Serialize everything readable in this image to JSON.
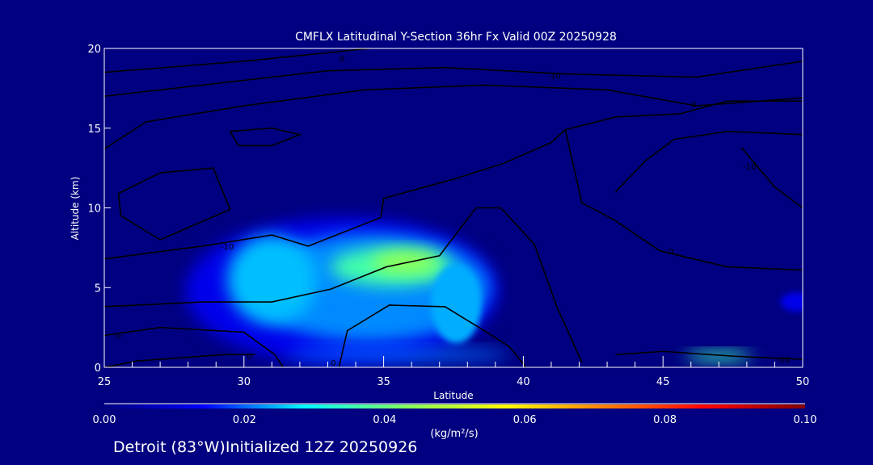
{
  "chart_data": {
    "type": "heatmap",
    "title": "CMFLX Latitudinal Y-Section 36hr  Fx Valid 00Z 20250928",
    "xlabel": "Latitude",
    "ylabel": "Altitude (km)",
    "xlim": [
      25,
      50
    ],
    "ylim": [
      0,
      20
    ],
    "xticks": [
      25,
      30,
      35,
      40,
      45,
      50
    ],
    "yticks": [
      0,
      5,
      10,
      15,
      20
    ],
    "background_color": "#000080",
    "colorbar": {
      "label": "(kg/m²/s)",
      "range": [
        0.0,
        0.1
      ],
      "ticks": [
        "0.00",
        "0.02",
        "0.04",
        "0.06",
        "0.08",
        "0.10"
      ],
      "colors": [
        "#000080",
        "#0000ff",
        "#00ffff",
        "#80ff60",
        "#ffff00",
        "#ff8000",
        "#ff0000",
        "#800000"
      ]
    },
    "field_blobs": [
      {
        "lat": 33.5,
        "alt": 4.8,
        "rlat": 5.6,
        "ralt": 4.6,
        "value": 0.012
      },
      {
        "lat": 34.5,
        "alt": 5.0,
        "rlat": 4.3,
        "ralt": 3.4,
        "value": 0.022
      },
      {
        "lat": 31.0,
        "alt": 5.5,
        "rlat": 1.6,
        "ralt": 2.8,
        "value": 0.025
      },
      {
        "lat": 35.3,
        "alt": 6.3,
        "rlat": 2.2,
        "ralt": 1.2,
        "value": 0.036
      },
      {
        "lat": 35.8,
        "alt": 6.6,
        "rlat": 1.2,
        "ralt": 0.7,
        "value": 0.045
      },
      {
        "lat": 37.6,
        "alt": 4.0,
        "rlat": 0.9,
        "ralt": 2.5,
        "value": 0.024
      },
      {
        "lat": 35.5,
        "alt": 0.8,
        "rlat": 4.0,
        "ralt": 0.4,
        "value": 0.02
      },
      {
        "lat": 47.0,
        "alt": 0.7,
        "rlat": 1.2,
        "ralt": 0.3,
        "value": 0.035
      },
      {
        "lat": 49.8,
        "alt": 4.1,
        "rlat": 0.6,
        "ralt": 0.6,
        "value": 0.012
      }
    ],
    "contours": [
      {
        "label": "0",
        "label_at": [
          33.5,
          19.4
        ],
        "points": [
          [
            25,
            18.5
          ],
          [
            30,
            19.2
          ],
          [
            34.5,
            20
          ]
        ]
      },
      {
        "label": "-10",
        "label_at": [
          41.1,
          18.3
        ],
        "points": [
          [
            25,
            17
          ],
          [
            28.5,
            17.7
          ],
          [
            33,
            18.6
          ],
          [
            37.2,
            18.8
          ],
          [
            41.5,
            18.4
          ],
          [
            46.2,
            18.2
          ],
          [
            50,
            19.2
          ]
        ]
      },
      {
        "label": "0",
        "label_at": [
          46.1,
          16.5
        ],
        "points": [
          [
            25,
            13.7
          ],
          [
            26.5,
            15.4
          ],
          [
            30,
            16.4
          ],
          [
            34.3,
            17.4
          ],
          [
            38.6,
            17.7
          ],
          [
            43,
            17.4
          ],
          [
            46.2,
            16.4
          ],
          [
            50,
            16.9
          ]
        ]
      },
      {
        "label": "",
        "label_at": null,
        "points": [
          [
            25.5,
            10.9
          ],
          [
            27,
            12.2
          ],
          [
            28.9,
            12.5
          ],
          [
            29.5,
            9.9
          ],
          [
            27,
            8.0
          ],
          [
            25.6,
            9.5
          ],
          [
            25.5,
            10.9
          ]
        ]
      },
      {
        "label": "",
        "label_at": null,
        "points": [
          [
            29.5,
            14.8
          ],
          [
            31,
            15
          ],
          [
            32,
            14.6
          ],
          [
            31,
            13.9
          ],
          [
            29.8,
            13.9
          ],
          [
            29.5,
            14.8
          ]
        ]
      },
      {
        "label": "-10",
        "label_at": [
          29.4,
          7.6
        ],
        "points": [
          [
            25,
            6.8
          ],
          [
            28.5,
            7.6
          ],
          [
            31,
            8.3
          ],
          [
            32.3,
            7.6
          ],
          [
            34.9,
            9.4
          ],
          [
            35,
            10.6
          ],
          [
            37.5,
            11.8
          ],
          [
            39.3,
            12.8
          ],
          [
            41,
            14.1
          ],
          [
            41.5,
            14.9
          ],
          [
            43.3,
            15.7
          ],
          [
            45.6,
            15.9
          ],
          [
            47.3,
            16.7
          ],
          [
            50,
            16.7
          ]
        ]
      },
      {
        "label": "",
        "label_at": null,
        "points": [
          [
            25,
            3.8
          ],
          [
            28.5,
            4.1
          ],
          [
            31,
            4.1
          ],
          [
            33.1,
            4.9
          ],
          [
            35.1,
            6.3
          ],
          [
            37,
            7.0
          ],
          [
            38.3,
            10
          ],
          [
            39.2,
            10
          ],
          [
            40.4,
            7.7
          ],
          [
            41.2,
            3.8
          ],
          [
            42.1,
            0.3
          ]
        ]
      },
      {
        "label": "0",
        "label_at": [
          25.5,
          2.0
        ],
        "points": [
          [
            25,
            2.0
          ],
          [
            27,
            2.5
          ],
          [
            30,
            2.2
          ],
          [
            31.1,
            0.8
          ],
          [
            31.4,
            0
          ]
        ]
      },
      {
        "label": "0",
        "label_at": [
          30.2,
          0.7
        ],
        "points": [
          [
            25,
            0
          ],
          [
            26.2,
            0.4
          ],
          [
            29.3,
            0.8
          ],
          [
            30.4,
            0.8
          ]
        ]
      },
      {
        "label": "0",
        "label_at": [
          33.2,
          0.3
        ],
        "points": [
          [
            33.4,
            0
          ],
          [
            33.7,
            2.3
          ],
          [
            35.2,
            3.9
          ],
          [
            37.2,
            3.8
          ],
          [
            38.6,
            2.3
          ],
          [
            39.5,
            1.3
          ],
          [
            40.1,
            0
          ]
        ]
      },
      {
        "label": "0",
        "label_at": [
          45.3,
          7.3
        ],
        "points": [
          [
            41.5,
            14.9
          ],
          [
            42.1,
            10.3
          ],
          [
            43.2,
            9.3
          ],
          [
            44.9,
            7.3
          ],
          [
            47.3,
            6.3
          ],
          [
            50,
            6.1
          ]
        ]
      },
      {
        "label": "",
        "label_at": null,
        "points": [
          [
            43.3,
            11
          ],
          [
            44.4,
            13
          ],
          [
            45.4,
            14.3
          ],
          [
            47.3,
            14.8
          ],
          [
            50,
            14.6
          ]
        ]
      },
      {
        "label": "-10",
        "label_at": [
          48.1,
          12.6
        ],
        "points": [
          [
            47.8,
            13.8
          ],
          [
            49,
            11.3
          ],
          [
            50,
            10.0
          ]
        ]
      },
      {
        "label": "-10",
        "label_at": [
          49.3,
          0.5
        ],
        "points": [
          [
            43.3,
            0.8
          ],
          [
            45,
            1.0
          ],
          [
            47.5,
            0.7
          ],
          [
            50,
            0.5
          ]
        ]
      }
    ]
  },
  "footer": {
    "location": "Detroit (83°W)Initialized 12Z 20250926"
  }
}
